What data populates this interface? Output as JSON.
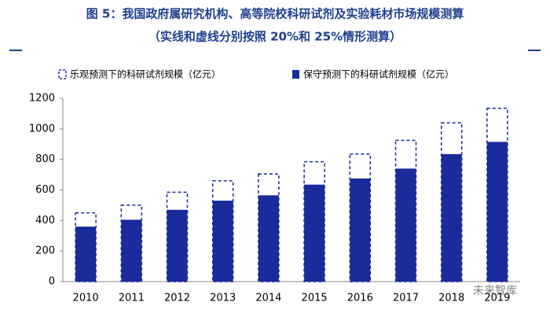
{
  "chart_data": {
    "type": "bar",
    "title": "图 5：我国政府属研究机构、高等院校科研试剂及实验耗材市场规模测算",
    "subtitle": "（实线和虚线分别按照 20%和 25%情形测算）",
    "watermark": "未来智库",
    "categories": [
      "2010",
      "2011",
      "2012",
      "2013",
      "2014",
      "2015",
      "2016",
      "2017",
      "2018",
      "2019"
    ],
    "series": [
      {
        "name": "乐观预测下的科研试剂规模（亿元）",
        "color": "#1a2b9c",
        "style": "dashed",
        "values": [
          450,
          500,
          585,
          660,
          705,
          785,
          835,
          925,
          1040,
          1135
        ]
      },
      {
        "name": "保守预测下的科研试剂规模（亿元）",
        "color": "#1a2b9c",
        "style": "solid",
        "values": [
          360,
          405,
          470,
          530,
          565,
          635,
          675,
          740,
          835,
          915
        ]
      }
    ],
    "ylim": [
      0,
      1200
    ],
    "yticks": [
      0,
      200,
      400,
      600,
      800,
      1000,
      1200
    ],
    "grid": false
  }
}
